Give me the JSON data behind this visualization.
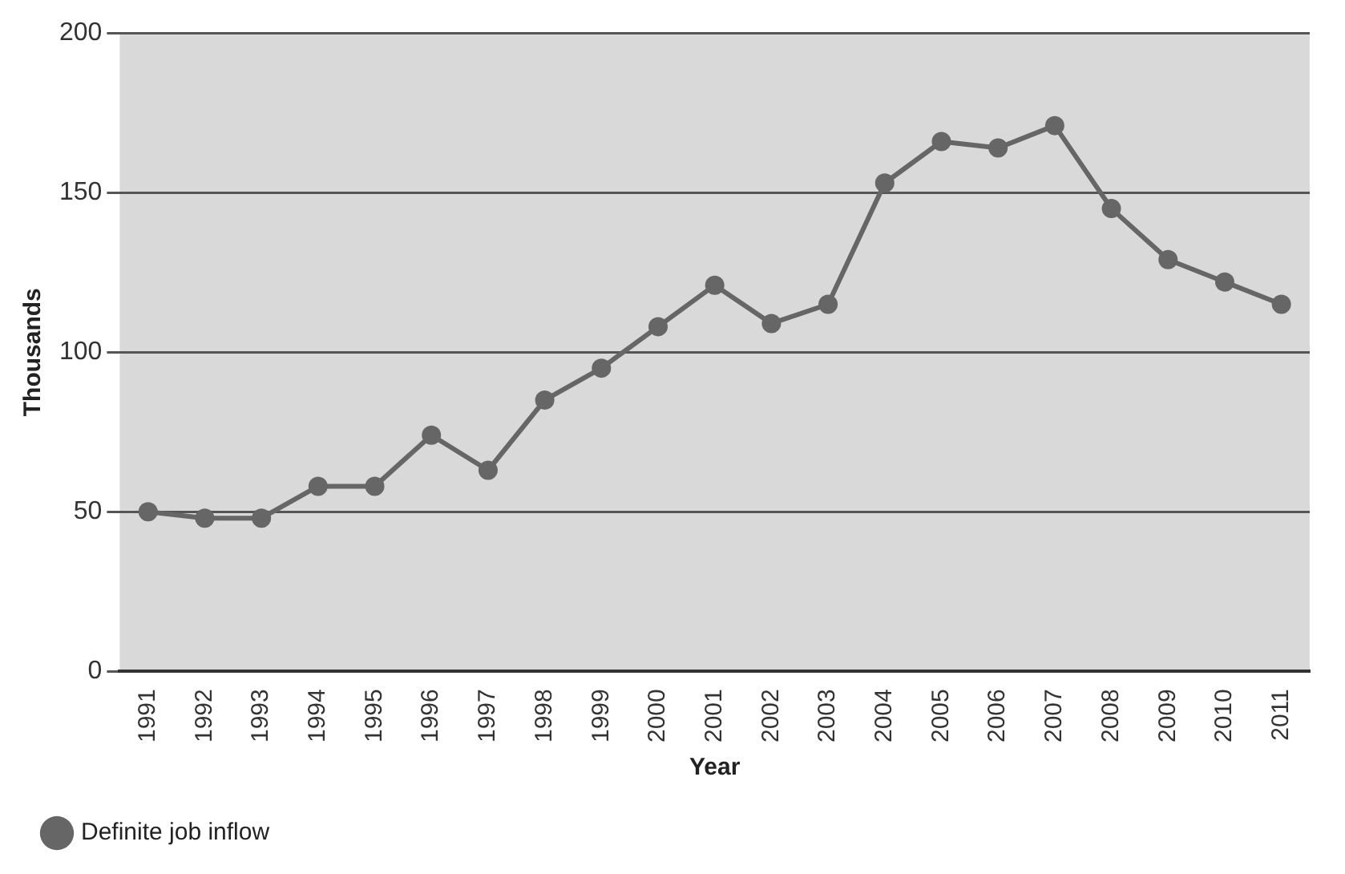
{
  "chart_data": {
    "type": "line",
    "xlabel": "Year",
    "ylabel": "Thousands",
    "categories": [
      "1991",
      "1992",
      "1993",
      "1994",
      "1995",
      "1996",
      "1997",
      "1998",
      "1999",
      "2000",
      "2001",
      "2002",
      "2003",
      "2004",
      "2005",
      "2006",
      "2007",
      "2008",
      "2009",
      "2010",
      "2011"
    ],
    "series": [
      {
        "name": "Definite job inflow",
        "color": "#666666",
        "values": [
          50,
          48,
          48,
          58,
          58,
          74,
          63,
          85,
          95,
          108,
          121,
          109,
          115,
          153,
          166,
          164,
          171,
          145,
          129,
          122,
          115
        ]
      }
    ],
    "ylim": [
      0,
      200
    ],
    "yticks": [
      0,
      50,
      100,
      150,
      200
    ],
    "grid": "y",
    "legend": "bottom",
    "marker": "circle",
    "line_style": "solid"
  }
}
